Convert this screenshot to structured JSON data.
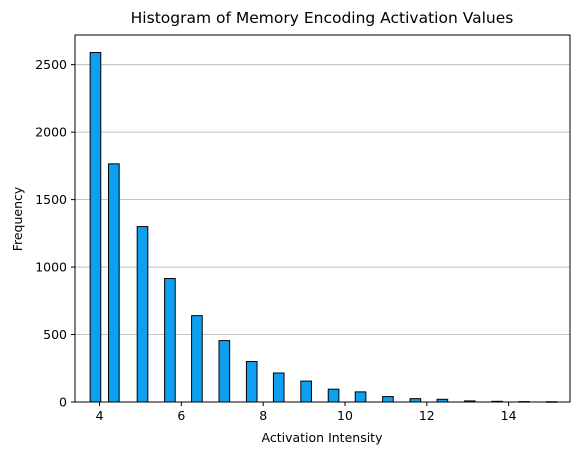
{
  "chart_data": {
    "type": "bar",
    "title": "Histogram of Memory Encoding Activation Values",
    "xlabel": "Activation Intensity",
    "ylabel": "Frequency",
    "xlim": [
      3.4,
      15.5
    ],
    "ylim": [
      0,
      2720
    ],
    "xticks": [
      4,
      6,
      8,
      10,
      12,
      14
    ],
    "yticks": [
      0,
      500,
      1000,
      1500,
      2000,
      2500
    ],
    "bar_width": 0.26,
    "grid": "y-major",
    "colors": {
      "bar_fill": "#0d9ff0",
      "bar_edge": "#000000",
      "grid": "#b0b0b0",
      "axis": "#000000"
    },
    "bins": [
      {
        "x": 3.9,
        "value": 2590
      },
      {
        "x": 4.35,
        "value": 1765
      },
      {
        "x": 5.05,
        "value": 1300
      },
      {
        "x": 5.72,
        "value": 915
      },
      {
        "x": 6.38,
        "value": 640
      },
      {
        "x": 7.05,
        "value": 455
      },
      {
        "x": 7.72,
        "value": 300
      },
      {
        "x": 8.38,
        "value": 215
      },
      {
        "x": 9.05,
        "value": 155
      },
      {
        "x": 9.72,
        "value": 95
      },
      {
        "x": 10.38,
        "value": 75
      },
      {
        "x": 11.05,
        "value": 40
      },
      {
        "x": 11.72,
        "value": 25
      },
      {
        "x": 12.38,
        "value": 20
      },
      {
        "x": 13.05,
        "value": 8
      },
      {
        "x": 13.72,
        "value": 5
      },
      {
        "x": 14.38,
        "value": 3
      },
      {
        "x": 15.05,
        "value": 2
      }
    ]
  }
}
